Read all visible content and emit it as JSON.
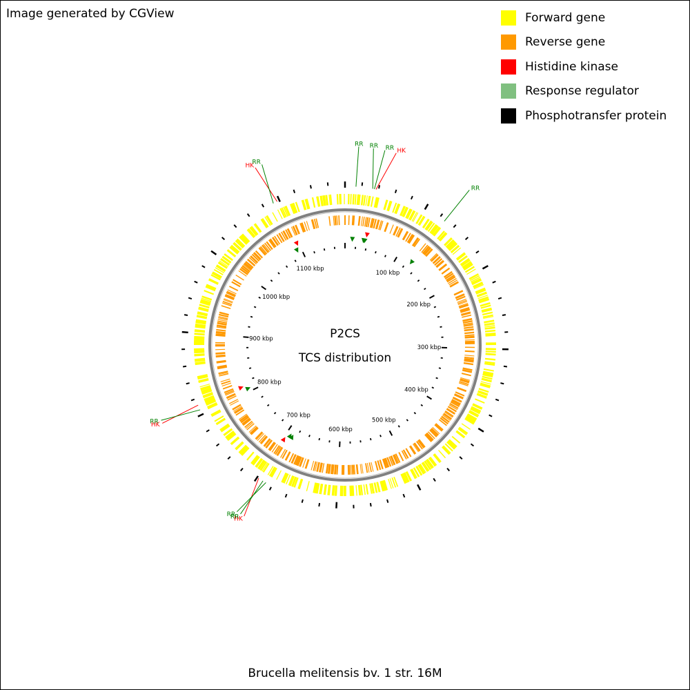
{
  "credit": "Image generated by CGView",
  "title": "P2CS",
  "subtitle": "TCS distribution",
  "caption": "Brucella melitensis bv. 1 str. 16M",
  "legend": [
    {
      "label": "Forward gene",
      "color": "#ffff00",
      "icon": "yellow-square"
    },
    {
      "label": "Reverse gene",
      "color": "#ff9900",
      "icon": "orange-square"
    },
    {
      "label": "Histidine kinase",
      "color": "#ff0000",
      "icon": "red-square"
    },
    {
      "label": "Response regulator",
      "color": "#80c080",
      "icon": "green-square"
    },
    {
      "label": "Phosphotransfer protein",
      "color": "#000000",
      "icon": "black-square"
    }
  ],
  "colors": {
    "hk": "#ff0000",
    "rr": "#008000",
    "ring": "#808080"
  },
  "genome": {
    "length_kbp": 1180,
    "tick_step_kbp": 100
  },
  "kbp_labels": [
    "100 kbp",
    "200 kbp",
    "300 kbp",
    "400 kbp",
    "500 kbp",
    "600 kbp",
    "700 kbp",
    "800 kbp",
    "900 kbp",
    "1000 kbp",
    "1100 kbp"
  ],
  "features": [
    {
      "type": "RR",
      "pos_kbp": 13,
      "label": "RR"
    },
    {
      "type": "RR",
      "pos_kbp": 33,
      "label": "RR"
    },
    {
      "type": "RR",
      "pos_kbp": 35,
      "label": "RR"
    },
    {
      "type": "HK",
      "pos_kbp": 37,
      "label": "HK"
    },
    {
      "type": "RR",
      "pos_kbp": 127,
      "label": "RR"
    },
    {
      "type": "HK",
      "pos_kbp": 698,
      "label": "HK"
    },
    {
      "type": "RR",
      "pos_kbp": 692,
      "label": "RR"
    },
    {
      "type": "RR",
      "pos_kbp": 688,
      "label": "RR"
    },
    {
      "type": "HK",
      "pos_kbp": 812,
      "label": "HK"
    },
    {
      "type": "RR",
      "pos_kbp": 806,
      "label": "RR"
    },
    {
      "type": "HK",
      "pos_kbp": 1097,
      "label": "HK"
    },
    {
      "type": "RR",
      "pos_kbp": 1092,
      "label": "RR"
    }
  ]
}
